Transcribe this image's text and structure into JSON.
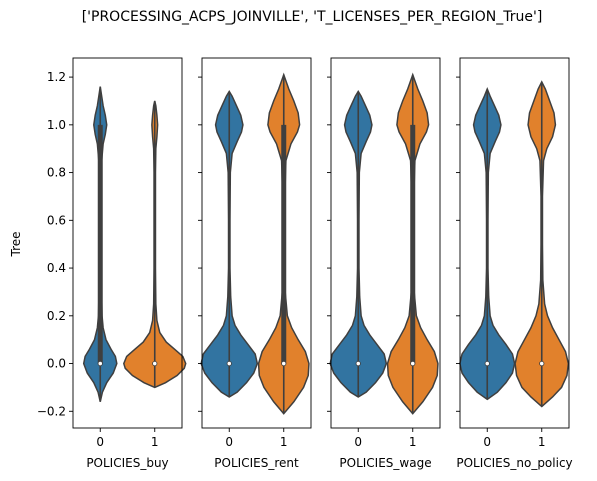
{
  "title": "['PROCESSING_ACPS_JOINVILLE', 'T_LICENSES_PER_REGION_True']",
  "chart_data": {
    "type": "violin",
    "ylabel": "Tree",
    "ylim": [
      -0.27,
      1.28
    ],
    "yticks": [
      -0.2,
      0.0,
      0.2,
      0.4,
      0.6,
      0.8,
      1.0,
      1.2
    ],
    "ytick_labels": [
      "−0.2",
      "0.0",
      "0.2",
      "0.4",
      "0.6",
      "0.8",
      "1.0",
      "1.2"
    ],
    "categories": [
      "0",
      "1"
    ],
    "colors": {
      "0": "#3274a1",
      "1": "#e1812c"
    },
    "panels": [
      {
        "xlabel": "POLICIES_buy",
        "violins": [
          {
            "category": "0",
            "min": -0.16,
            "max": 1.16,
            "q1": 0.0,
            "median": 0.0,
            "q3": 1.0,
            "profile": [
              [
                -0.16,
                0.0
              ],
              [
                -0.12,
                0.06
              ],
              [
                -0.08,
                0.18
              ],
              [
                -0.04,
                0.36
              ],
              [
                0.0,
                0.46
              ],
              [
                0.03,
                0.42
              ],
              [
                0.06,
                0.3
              ],
              [
                0.1,
                0.16
              ],
              [
                0.15,
                0.08
              ],
              [
                0.2,
                0.05
              ],
              [
                0.3,
                0.035
              ],
              [
                0.5,
                0.03
              ],
              [
                0.7,
                0.03
              ],
              [
                0.85,
                0.04
              ],
              [
                0.92,
                0.08
              ],
              [
                0.96,
                0.14
              ],
              [
                1.0,
                0.18
              ],
              [
                1.04,
                0.14
              ],
              [
                1.08,
                0.08
              ],
              [
                1.12,
                0.04
              ],
              [
                1.16,
                0.0
              ]
            ]
          },
          {
            "category": "1",
            "min": -0.1,
            "max": 1.1,
            "q1": 0.0,
            "median": 0.0,
            "q3": 0.0,
            "profile": [
              [
                -0.1,
                0.0
              ],
              [
                -0.08,
                0.3
              ],
              [
                -0.05,
                0.62
              ],
              [
                -0.02,
                0.82
              ],
              [
                0.0,
                0.86
              ],
              [
                0.03,
                0.78
              ],
              [
                0.06,
                0.55
              ],
              [
                0.09,
                0.32
              ],
              [
                0.13,
                0.14
              ],
              [
                0.18,
                0.06
              ],
              [
                0.25,
                0.03
              ],
              [
                0.4,
                0.02
              ],
              [
                0.6,
                0.02
              ],
              [
                0.8,
                0.02
              ],
              [
                0.9,
                0.03
              ],
              [
                0.95,
                0.06
              ],
              [
                1.0,
                0.08
              ],
              [
                1.04,
                0.06
              ],
              [
                1.08,
                0.03
              ],
              [
                1.1,
                0.0
              ]
            ]
          }
        ]
      },
      {
        "xlabel": "POLICIES_rent",
        "violins": [
          {
            "category": "0",
            "min": -0.14,
            "max": 1.14,
            "q1": 0.0,
            "median": 0.0,
            "q3": 0.0,
            "profile": [
              [
                -0.14,
                0.0
              ],
              [
                -0.12,
                0.22
              ],
              [
                -0.08,
                0.48
              ],
              [
                -0.04,
                0.68
              ],
              [
                0.0,
                0.78
              ],
              [
                0.04,
                0.72
              ],
              [
                0.08,
                0.52
              ],
              [
                0.12,
                0.32
              ],
              [
                0.16,
                0.16
              ],
              [
                0.2,
                0.08
              ],
              [
                0.28,
                0.04
              ],
              [
                0.4,
                0.02
              ],
              [
                0.6,
                0.02
              ],
              [
                0.8,
                0.03
              ],
              [
                0.88,
                0.08
              ],
              [
                0.93,
                0.22
              ],
              [
                0.97,
                0.34
              ],
              [
                1.0,
                0.38
              ],
              [
                1.04,
                0.32
              ],
              [
                1.08,
                0.2
              ],
              [
                1.12,
                0.08
              ],
              [
                1.14,
                0.0
              ]
            ]
          },
          {
            "category": "1",
            "min": -0.21,
            "max": 1.21,
            "q1": 0.0,
            "median": 0.0,
            "q3": 1.0,
            "profile": [
              [
                -0.21,
                0.0
              ],
              [
                -0.16,
                0.28
              ],
              [
                -0.1,
                0.55
              ],
              [
                -0.05,
                0.68
              ],
              [
                0.0,
                0.7
              ],
              [
                0.05,
                0.6
              ],
              [
                0.1,
                0.4
              ],
              [
                0.15,
                0.22
              ],
              [
                0.2,
                0.1
              ],
              [
                0.3,
                0.04
              ],
              [
                0.5,
                0.025
              ],
              [
                0.7,
                0.03
              ],
              [
                0.85,
                0.06
              ],
              [
                0.92,
                0.2
              ],
              [
                0.97,
                0.38
              ],
              [
                1.0,
                0.44
              ],
              [
                1.05,
                0.4
              ],
              [
                1.1,
                0.28
              ],
              [
                1.15,
                0.14
              ],
              [
                1.21,
                0.0
              ]
            ]
          }
        ]
      },
      {
        "xlabel": "POLICIES_wage",
        "violins": [
          {
            "category": "0",
            "min": -0.14,
            "max": 1.14,
            "q1": 0.0,
            "median": 0.0,
            "q3": 0.0,
            "profile": [
              [
                -0.14,
                0.0
              ],
              [
                -0.12,
                0.22
              ],
              [
                -0.08,
                0.48
              ],
              [
                -0.04,
                0.68
              ],
              [
                0.0,
                0.78
              ],
              [
                0.04,
                0.72
              ],
              [
                0.08,
                0.52
              ],
              [
                0.12,
                0.32
              ],
              [
                0.16,
                0.16
              ],
              [
                0.2,
                0.08
              ],
              [
                0.28,
                0.04
              ],
              [
                0.4,
                0.02
              ],
              [
                0.6,
                0.02
              ],
              [
                0.8,
                0.03
              ],
              [
                0.88,
                0.08
              ],
              [
                0.93,
                0.22
              ],
              [
                0.97,
                0.34
              ],
              [
                1.0,
                0.38
              ],
              [
                1.04,
                0.32
              ],
              [
                1.08,
                0.2
              ],
              [
                1.12,
                0.08
              ],
              [
                1.14,
                0.0
              ]
            ]
          },
          {
            "category": "1",
            "min": -0.21,
            "max": 1.21,
            "q1": 0.0,
            "median": 0.0,
            "q3": 1.0,
            "profile": [
              [
                -0.21,
                0.0
              ],
              [
                -0.16,
                0.28
              ],
              [
                -0.1,
                0.55
              ],
              [
                -0.05,
                0.68
              ],
              [
                0.0,
                0.7
              ],
              [
                0.05,
                0.6
              ],
              [
                0.1,
                0.4
              ],
              [
                0.15,
                0.22
              ],
              [
                0.2,
                0.1
              ],
              [
                0.3,
                0.04
              ],
              [
                0.5,
                0.025
              ],
              [
                0.7,
                0.03
              ],
              [
                0.85,
                0.06
              ],
              [
                0.92,
                0.2
              ],
              [
                0.97,
                0.38
              ],
              [
                1.0,
                0.44
              ],
              [
                1.05,
                0.4
              ],
              [
                1.1,
                0.28
              ],
              [
                1.15,
                0.14
              ],
              [
                1.21,
                0.0
              ]
            ]
          }
        ]
      },
      {
        "xlabel": "POLICIES_no_policy",
        "violins": [
          {
            "category": "0",
            "min": -0.15,
            "max": 1.15,
            "q1": 0.0,
            "median": 0.0,
            "q3": 0.0,
            "profile": [
              [
                -0.15,
                0.0
              ],
              [
                -0.12,
                0.28
              ],
              [
                -0.08,
                0.52
              ],
              [
                -0.04,
                0.7
              ],
              [
                0.0,
                0.76
              ],
              [
                0.04,
                0.7
              ],
              [
                0.08,
                0.52
              ],
              [
                0.12,
                0.32
              ],
              [
                0.16,
                0.16
              ],
              [
                0.2,
                0.08
              ],
              [
                0.28,
                0.04
              ],
              [
                0.4,
                0.02
              ],
              [
                0.6,
                0.02
              ],
              [
                0.8,
                0.03
              ],
              [
                0.88,
                0.08
              ],
              [
                0.93,
                0.22
              ],
              [
                0.97,
                0.34
              ],
              [
                1.0,
                0.38
              ],
              [
                1.04,
                0.32
              ],
              [
                1.08,
                0.2
              ],
              [
                1.12,
                0.08
              ],
              [
                1.15,
                0.0
              ]
            ]
          },
          {
            "category": "1",
            "min": -0.18,
            "max": 1.18,
            "q1": 0.0,
            "median": 0.0,
            "q3": 0.0,
            "profile": [
              [
                -0.18,
                0.0
              ],
              [
                -0.14,
                0.3
              ],
              [
                -0.1,
                0.55
              ],
              [
                -0.05,
                0.7
              ],
              [
                0.0,
                0.74
              ],
              [
                0.05,
                0.66
              ],
              [
                0.1,
                0.48
              ],
              [
                0.15,
                0.3
              ],
              [
                0.2,
                0.16
              ],
              [
                0.25,
                0.08
              ],
              [
                0.35,
                0.03
              ],
              [
                0.5,
                0.02
              ],
              [
                0.7,
                0.02
              ],
              [
                0.85,
                0.05
              ],
              [
                0.9,
                0.14
              ],
              [
                0.95,
                0.3
              ],
              [
                1.0,
                0.38
              ],
              [
                1.05,
                0.34
              ],
              [
                1.1,
                0.22
              ],
              [
                1.15,
                0.1
              ],
              [
                1.18,
                0.0
              ]
            ]
          }
        ]
      }
    ]
  }
}
